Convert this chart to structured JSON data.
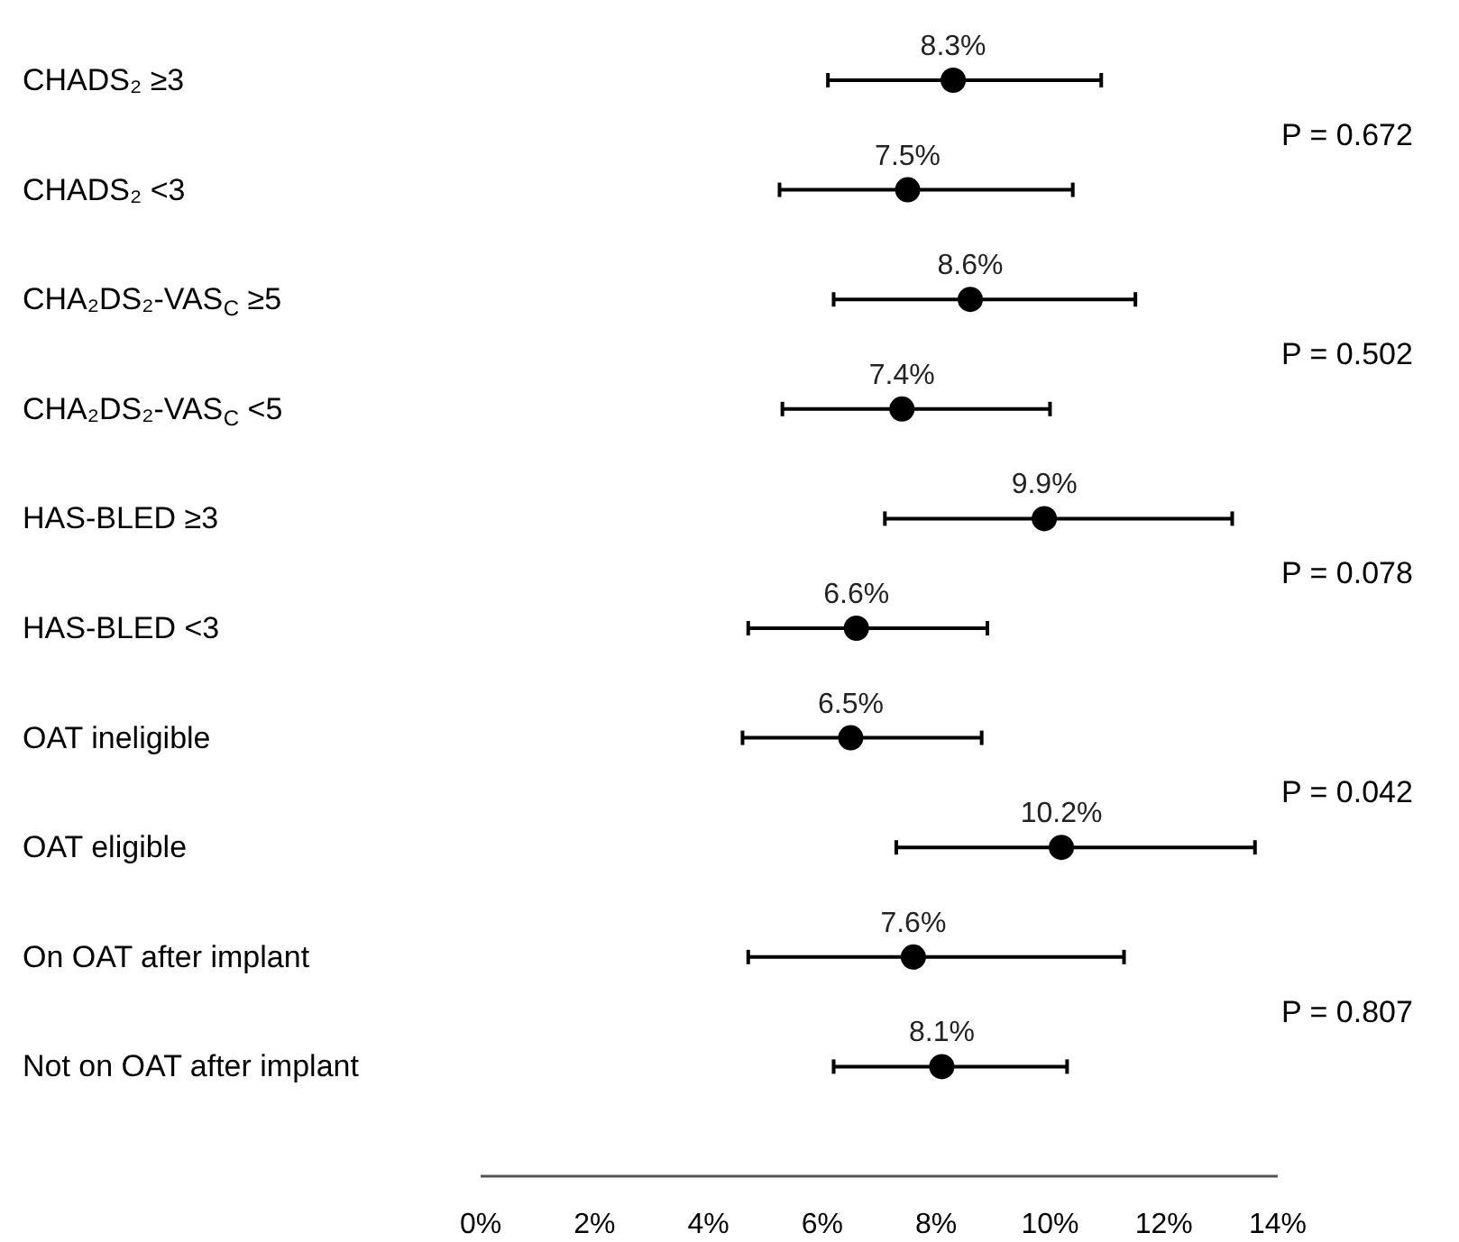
{
  "chart_data": {
    "type": "scatter",
    "orientation": "horizontal",
    "categories": [
      "CHADS₂ ≥3",
      "CHADS₂ <3",
      "CHA₂DS₂-VAS$_{C}$ ≥5",
      "CHA₂DS₂-VAS$_{C}$ <5",
      "HAS-BLED ≥3",
      "HAS-BLED <3",
      "OAT ineligible",
      "OAT eligible",
      "On OAT after implant",
      "Not on OAT after implant"
    ],
    "series": [
      {
        "color": "#000000",
        "values": [
          8.3,
          7.5,
          8.6,
          7.4,
          9.9,
          6.6,
          6.5,
          10.2,
          7.6,
          8.1
        ],
        "errors": [
          [
            6.1,
            10.9
          ],
          [
            5.25,
            10.4
          ],
          [
            6.2,
            11.5
          ],
          [
            5.3,
            10.0
          ],
          [
            7.1,
            13.2
          ],
          [
            4.7,
            8.9
          ],
          [
            4.6,
            8.8
          ],
          [
            7.3,
            13.6
          ],
          [
            4.7,
            11.3
          ],
          [
            6.2,
            10.3
          ]
        ],
        "value_labels": [
          "8.3%",
          "7.5%",
          "8.6%",
          "7.4%",
          "9.9%",
          "6.6%",
          "6.5%",
          "10.2%",
          "7.6%",
          "8.1%"
        ]
      }
    ],
    "xlim": [
      0,
      14
    ],
    "xticks": [
      {
        "value": 0,
        "label": "0%"
      },
      {
        "value": 2,
        "label": "2%"
      },
      {
        "value": 4,
        "label": "4%"
      },
      {
        "value": 6,
        "label": "6%"
      },
      {
        "value": 8,
        "label": "8%"
      },
      {
        "value": 10,
        "label": "10%"
      },
      {
        "value": 12,
        "label": "12%"
      },
      {
        "value": 14,
        "label": "14%"
      }
    ],
    "annotations": [
      "P = 0.672",
      "P = 0.502",
      "P = 0.078",
      "P = 0.042",
      "P = 0.807"
    ],
    "marker": "circle",
    "grid": false
  }
}
